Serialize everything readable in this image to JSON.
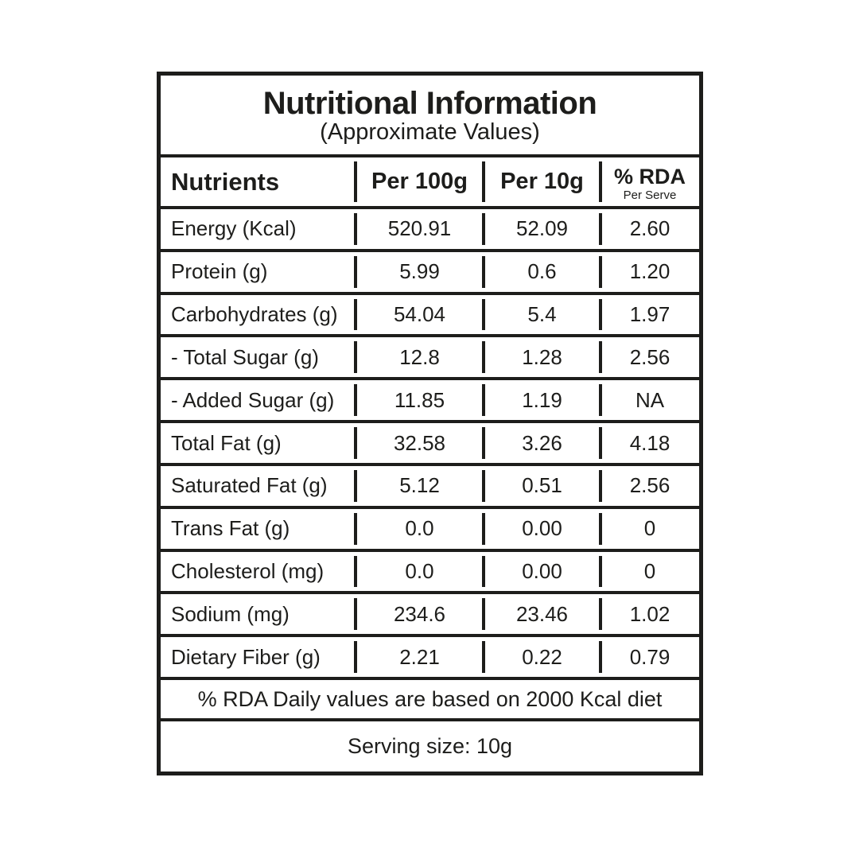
{
  "title": "Nutritional Information",
  "subtitle": "(Approximate Values)",
  "columns": {
    "nutrients": "Nutrients",
    "per100g": "Per 100g",
    "per10g": "Per 10g",
    "rda": "% RDA",
    "rda_sub": "Per Serve"
  },
  "rows": [
    {
      "label": "Energy (Kcal)",
      "per100g": "520.91",
      "per10g": "52.09",
      "rda": "2.60"
    },
    {
      "label": "Protein (g)",
      "per100g": "5.99",
      "per10g": "0.6",
      "rda": "1.20"
    },
    {
      "label": "Carbohydrates (g)",
      "per100g": "54.04",
      "per10g": "5.4",
      "rda": "1.97"
    },
    {
      "label": "- Total Sugar (g)",
      "per100g": "12.8",
      "per10g": "1.28",
      "rda": "2.56"
    },
    {
      "label": "- Added Sugar (g)",
      "per100g": "11.85",
      "per10g": "1.19",
      "rda": "NA"
    },
    {
      "label": "Total Fat (g)",
      "per100g": "32.58",
      "per10g": "3.26",
      "rda": "4.18"
    },
    {
      "label": "Saturated Fat (g)",
      "per100g": "5.12",
      "per10g": "0.51",
      "rda": "2.56"
    },
    {
      "label": "Trans Fat (g)",
      "per100g": "0.0",
      "per10g": "0.00",
      "rda": "0"
    },
    {
      "label": "Cholesterol (mg)",
      "per100g": "0.0",
      "per10g": "0.00",
      "rda": "0"
    },
    {
      "label": "Sodium (mg)",
      "per100g": "234.6",
      "per10g": "23.46",
      "rda": "1.02"
    },
    {
      "label": "Dietary Fiber (g)",
      "per100g": "2.21",
      "per10g": "0.22",
      "rda": "0.79"
    }
  ],
  "footnotes": {
    "rda_note": "% RDA Daily values are based on 2000 Kcal diet",
    "serving": "Serving size: 10g"
  },
  "colors": {
    "border": "#1d1d1b",
    "text": "#1d1d1b",
    "background": "#ffffff"
  }
}
